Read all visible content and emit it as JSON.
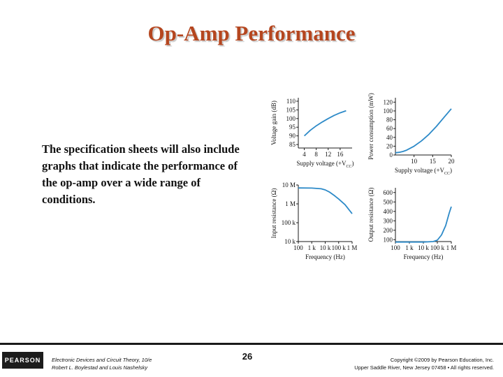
{
  "slide": {
    "title": "Op-Amp Performance",
    "body": "The specification sheets will also include graphs that indicate the performance of the op-amp over a wide range of conditions.",
    "page_number": "26",
    "book_line1": "Electronic Devices and Circuit Theory, 10/e",
    "book_line2": "Robert L. Boylestad and Louis Nashelsky",
    "copyright_line1": "Copyright ©2009 by Pearson Education, Inc.",
    "copyright_line2": "Upper Saddle River, New Jersey 07458 • All rights reserved.",
    "logo_text": "PEARSON"
  },
  "chart_data": [
    {
      "type": "line",
      "xlabel": "Supply voltage (+V",
      "xlabel_sub": "CC",
      "xlabel_end": ")",
      "ylabel": "Voltage gain (dB)",
      "xticks": [
        "4",
        "8",
        "12",
        "16"
      ],
      "xtick_values": [
        4,
        8,
        12,
        16
      ],
      "yticks": [
        "85",
        "90",
        "95",
        "100",
        "105",
        "110"
      ],
      "ytick_values": [
        85,
        90,
        95,
        100,
        105,
        110
      ],
      "xlim": [
        2,
        20
      ],
      "ylim": [
        83,
        112
      ],
      "yscale": "linear",
      "series": [
        {
          "x": [
            4,
            6,
            8,
            10,
            12,
            14,
            16,
            18
          ],
          "y": [
            90,
            93.2,
            95.8,
            98,
            100,
            101.8,
            103.3,
            104.5
          ]
        }
      ]
    },
    {
      "type": "line",
      "xlabel": "Supply voltage (+V",
      "xlabel_sub": "CC",
      "xlabel_end": ")",
      "ylabel": "Power consumption (mW)",
      "xticks": [
        "10",
        "15",
        "20"
      ],
      "xtick_values": [
        10,
        15,
        20
      ],
      "yticks": [
        "0",
        "20",
        "40",
        "60",
        "80",
        "100",
        "120"
      ],
      "ytick_values": [
        0,
        20,
        40,
        60,
        80,
        100,
        120
      ],
      "xlim": [
        5,
        20
      ],
      "ylim": [
        0,
        130
      ],
      "yscale": "linear",
      "series": [
        {
          "x": [
            5,
            6,
            7,
            8,
            10,
            12,
            14,
            16,
            18,
            20
          ],
          "y": [
            5,
            6,
            8,
            11,
            20,
            32,
            47,
            65,
            85,
            105
          ]
        }
      ]
    },
    {
      "type": "line",
      "xlabel": "Frequency (Hz)",
      "ylabel": "Input resistance (Ω)",
      "xticks": [
        "100",
        "1 k",
        "10 k",
        "100 k",
        "1 M"
      ],
      "xtick_values": [
        100,
        1000,
        10000,
        100000,
        1000000
      ],
      "yticks": [
        "10 k",
        "100 k",
        "1 M",
        "10 M"
      ],
      "ytick_values": [
        10000,
        100000,
        1000000,
        10000000
      ],
      "xlim": [
        100,
        1000000
      ],
      "ylim": [
        10000,
        10000000
      ],
      "xscale": "log",
      "yscale": "log",
      "series": [
        {
          "x": [
            100,
            1000,
            5000,
            10000,
            20000,
            50000,
            100000,
            300000,
            1000000
          ],
          "y": [
            7000000,
            6900000,
            6300000,
            5500000,
            4300000,
            2700000,
            1800000,
            900000,
            300000
          ]
        }
      ]
    },
    {
      "type": "line",
      "xlabel": "Frequency (Hz)",
      "ylabel": "Output resistance (Ω)",
      "xticks": [
        "100",
        "1 k",
        "10 k",
        "100 k",
        "1 M"
      ],
      "xtick_values": [
        100,
        1000,
        10000,
        100000,
        1000000
      ],
      "yticks": [
        "100",
        "200",
        "300",
        "400",
        "500",
        "600"
      ],
      "ytick_values": [
        100,
        200,
        300,
        400,
        500,
        600
      ],
      "xlim": [
        100,
        1000000
      ],
      "ylim": [
        80,
        650
      ],
      "xscale": "log",
      "yscale": "linear",
      "series": [
        {
          "x": [
            100,
            1000,
            10000,
            50000,
            100000,
            200000,
            400000,
            700000,
            1000000
          ],
          "y": [
            75,
            75,
            75,
            80,
            95,
            150,
            250,
            380,
            450
          ]
        }
      ]
    }
  ],
  "colors": {
    "title": "#b5461f",
    "curve": "#2d8ac8",
    "axis": "#1a1a1a"
  }
}
